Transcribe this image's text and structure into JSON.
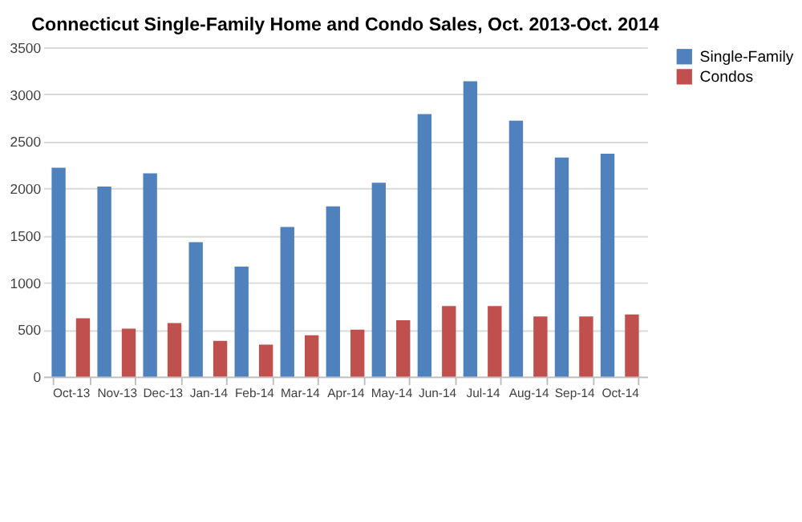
{
  "chart_data": {
    "type": "bar",
    "title": "Connecticut Single-Family Home and Condo Sales, Oct. 2013-Oct. 2014",
    "categories": [
      "Oct-13",
      "Nov-13",
      "Dec-13",
      "Jan-14",
      "Feb-14",
      "Mar-14",
      "Apr-14",
      "May-14",
      "Jun-14",
      "Jul-14",
      "Aug-14",
      "Sep-14",
      "Oct-14"
    ],
    "series": [
      {
        "name": "Single-Family",
        "color": "#4f81bd",
        "values": [
          2220,
          2020,
          2160,
          1430,
          1170,
          1590,
          1810,
          2060,
          2790,
          3140,
          2720,
          2330,
          2370
        ]
      },
      {
        "name": "Condos",
        "color": "#c0504d",
        "values": [
          620,
          510,
          570,
          380,
          340,
          440,
          500,
          600,
          750,
          750,
          640,
          640,
          660
        ]
      }
    ],
    "ylim": [
      0,
      3500
    ],
    "yticks": [
      0,
      500,
      1000,
      1500,
      2000,
      2500,
      3000,
      3500
    ],
    "grid": "y",
    "legend": "top right"
  }
}
